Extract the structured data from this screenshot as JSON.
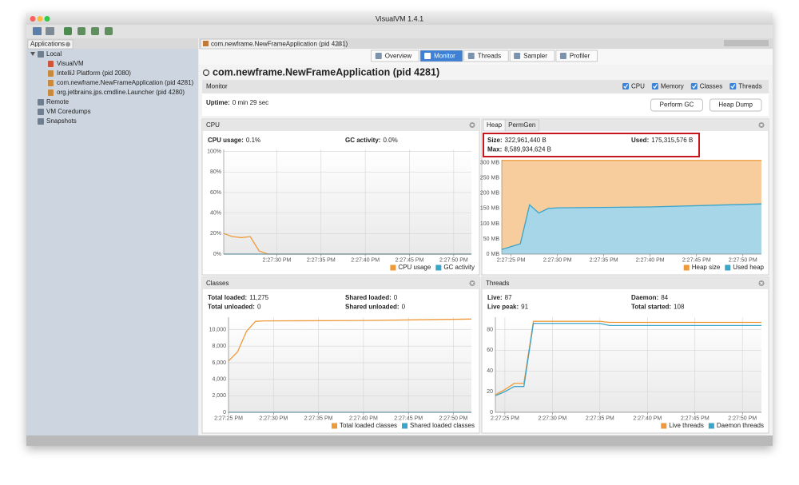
{
  "window": {
    "title": "VisualVM 1.4.1"
  },
  "sidebar": {
    "tab": "Applications",
    "tree": [
      {
        "label": "Local",
        "children": [
          {
            "label": "VisualVM"
          },
          {
            "label": "IntelliJ Platform (pid 2080)"
          },
          {
            "label": "com.newframe.NewFrameApplication (pid 4281)"
          },
          {
            "label": "org.jetbrains.jps.cmdline.Launcher (pid 4280)"
          }
        ]
      },
      {
        "label": "Remote"
      },
      {
        "label": "VM Coredumps"
      },
      {
        "label": "Snapshots"
      }
    ]
  },
  "document": {
    "tab": "com.newframe.NewFrameApplication (pid 4281)",
    "views": [
      "Overview",
      "Monitor",
      "Threads",
      "Sampler",
      "Profiler"
    ],
    "selected_view": 1,
    "heading": "com.newframe.NewFrameApplication (pid 4281)",
    "section": "Monitor",
    "checkboxes": [
      "CPU",
      "Memory",
      "Classes",
      "Threads"
    ],
    "uptime_label": "Uptime:",
    "uptime": "0 min 29 sec",
    "buttons": [
      "Perform GC",
      "Heap Dump"
    ]
  },
  "chart_data": [
    {
      "type": "line",
      "title": "CPU",
      "stats": [
        {
          "label": "CPU usage:",
          "value": "0.1%"
        },
        {
          "label": "GC activity:",
          "value": "0.0%"
        }
      ],
      "x": [
        "2:27:24 PM",
        "2:27:25 PM",
        "2:27:26 PM",
        "2:27:27 PM",
        "2:27:28 PM",
        "2:27:29 PM",
        "2:27:52 PM"
      ],
      "xlim": [
        "2:27:24 PM",
        "2:27:52 PM"
      ],
      "xticks": [
        "2:27:30 PM",
        "2:27:35 PM",
        "2:27:40 PM",
        "2:27:45 PM",
        "2:27:50 PM"
      ],
      "ylim": [
        0,
        102
      ],
      "yticks": [
        {
          "value": 0,
          "label": "0%"
        },
        {
          "value": 20,
          "label": "20%"
        },
        {
          "value": 40,
          "label": "40%"
        },
        {
          "value": 60,
          "label": "60%"
        },
        {
          "value": 80,
          "label": "80%"
        },
        {
          "value": 100,
          "label": "100%"
        }
      ],
      "grid": true,
      "series": [
        {
          "name": "CPU usage",
          "color": "#ee9a3a",
          "values": [
            20,
            17,
            16,
            17,
            3,
            0,
            0
          ]
        },
        {
          "name": "GC activity",
          "color": "#3aa4c9",
          "values": [
            0,
            0,
            0,
            0,
            0,
            0,
            0
          ]
        }
      ]
    },
    {
      "type": "area",
      "tabs": [
        "Heap",
        "PermGen"
      ],
      "highlight_stats": true,
      "stats": [
        {
          "label": "Size:",
          "value": "322,961,440 B"
        },
        {
          "label": "Used:",
          "value": "175,315,576 B"
        },
        {
          "label": "Max:",
          "value": "8,589,934,624 B"
        }
      ],
      "x": [
        "2:27:24 PM",
        "2:27:26 PM",
        "2:27:27 PM",
        "2:27:28 PM",
        "2:27:29 PM",
        "2:27:30 PM",
        "2:27:40 PM",
        "2:27:52 PM"
      ],
      "xlim": [
        "2:27:24 PM",
        "2:27:52 PM"
      ],
      "xticks": [
        "2:27:25 PM",
        "2:27:30 PM",
        "2:27:35 PM",
        "2:27:40 PM",
        "2:27:45 PM",
        "2:27:50 PM"
      ],
      "ylim": [
        0,
        310
      ],
      "yticks": [
        {
          "value": 0,
          "label": "0 MB"
        },
        {
          "value": 50,
          "label": "50 MB"
        },
        {
          "value": 100,
          "label": "100 MB"
        },
        {
          "value": 150,
          "label": "150 MB"
        },
        {
          "value": 200,
          "label": "200 MB"
        },
        {
          "value": 250,
          "label": "250 MB"
        },
        {
          "value": 300,
          "label": "300 MB"
        }
      ],
      "grid": true,
      "series": [
        {
          "name": "Heap size",
          "color": "#ee9a3a",
          "values": [
            308,
            308,
            308,
            308,
            308,
            308,
            308,
            308
          ]
        },
        {
          "name": "Used heap",
          "color": "#3aa4c9",
          "values": [
            15,
            34,
            162,
            135,
            150,
            152,
            155,
            165
          ]
        }
      ]
    },
    {
      "type": "line",
      "title": "Classes",
      "stats": [
        {
          "label": "Total loaded:",
          "value": "11,275"
        },
        {
          "label": "Shared loaded:",
          "value": "0"
        },
        {
          "label": "Total unloaded:",
          "value": "0"
        },
        {
          "label": "Shared unloaded:",
          "value": "0"
        }
      ],
      "x": [
        "2:27:25 PM",
        "2:27:26 PM",
        "2:27:27 PM",
        "2:27:28 PM",
        "2:27:29 PM",
        "2:27:40 PM",
        "2:27:52 PM"
      ],
      "xlim": [
        "2:27:25 PM",
        "2:27:52 PM"
      ],
      "xticks": [
        "2:27:25 PM",
        "2:27:30 PM",
        "2:27:35 PM",
        "2:27:40 PM",
        "2:27:45 PM",
        "2:27:50 PM"
      ],
      "ylim": [
        0,
        11500
      ],
      "yticks": [
        0,
        {
          "value": 2000,
          "label": "2,000"
        },
        {
          "value": 4000,
          "label": "4,000"
        },
        {
          "value": 6000,
          "label": "6,000"
        },
        {
          "value": 8000,
          "label": "8,000"
        },
        {
          "value": 10000,
          "label": "10,000"
        }
      ],
      "grid": true,
      "series": [
        {
          "name": "Total loaded classes",
          "color": "#ee9a3a",
          "values": [
            6200,
            7300,
            9800,
            11000,
            11050,
            11100,
            11275
          ]
        },
        {
          "name": "Shared loaded classes",
          "color": "#3aa4c9",
          "values": [
            0,
            0,
            0,
            0,
            0,
            0,
            0
          ]
        }
      ]
    },
    {
      "type": "line",
      "title": "Threads",
      "stats": [
        {
          "label": "Live:",
          "value": "87"
        },
        {
          "label": "Daemon:",
          "value": "84"
        },
        {
          "label": "Live peak:",
          "value": "91"
        },
        {
          "label": "Total started:",
          "value": "108"
        }
      ],
      "x": [
        "2:27:24 PM",
        "2:27:25 PM",
        "2:27:26 PM",
        "2:27:27 PM",
        "2:27:28 PM",
        "2:27:29 PM",
        "2:27:35 PM",
        "2:27:36 PM",
        "2:27:52 PM"
      ],
      "xlim": [
        "2:27:24 PM",
        "2:27:52 PM"
      ],
      "xticks": [
        "2:27:25 PM",
        "2:27:30 PM",
        "2:27:35 PM",
        "2:27:40 PM",
        "2:27:45 PM",
        "2:27:50 PM"
      ],
      "ylim": [
        0,
        92
      ],
      "yticks": [
        0,
        20,
        40,
        60,
        80
      ],
      "grid": true,
      "series": [
        {
          "name": "Live threads",
          "color": "#ee9a3a",
          "values": [
            17,
            22,
            28,
            28,
            88,
            88,
            88,
            87,
            87
          ]
        },
        {
          "name": "Daemon threads",
          "color": "#3aa4c9",
          "values": [
            16,
            20,
            25,
            25,
            86,
            86,
            86,
            84,
            84
          ]
        }
      ]
    }
  ]
}
